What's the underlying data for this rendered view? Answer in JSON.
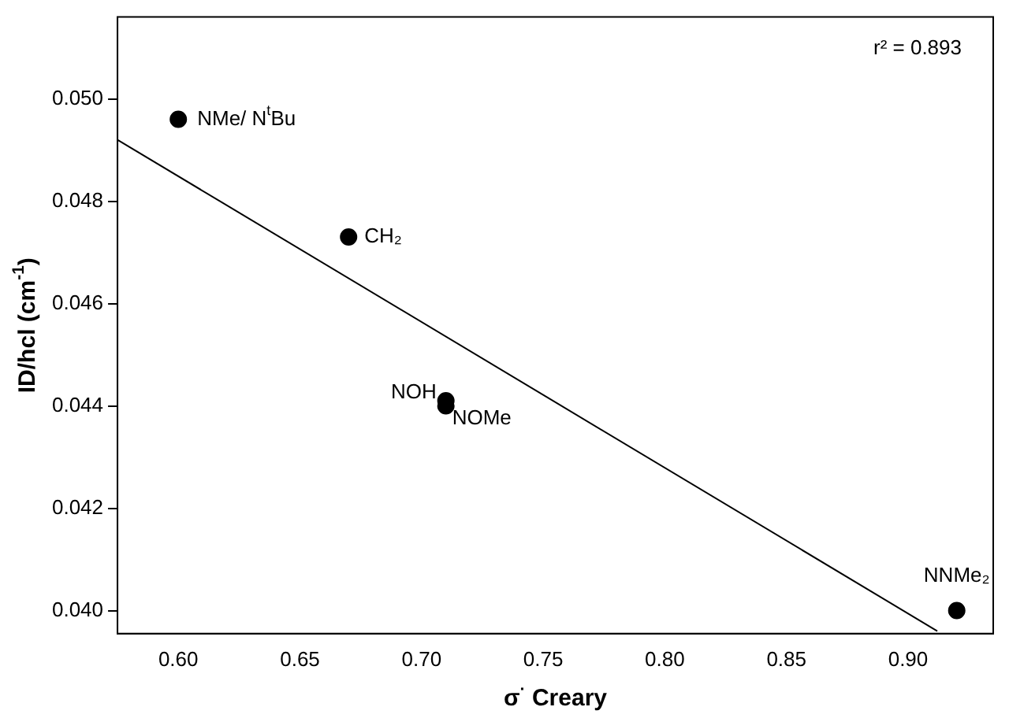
{
  "chart_data": {
    "type": "scatter",
    "xlabel": "σ$^{·}$ Creary",
    "ylabel": "ID/hcl (cm$^{-1}$)",
    "series": [
      {
        "color": "#000000",
        "marker": "circle",
        "x": [
          0.6,
          0.67,
          0.71,
          0.71,
          0.92
        ],
        "values": [
          0.0496,
          0.0473,
          0.0441,
          0.044,
          0.04
        ]
      },
      {
        "type": "line",
        "color": "#000000",
        "marker": "none",
        "x": [
          0.575,
          0.912
        ],
        "values": [
          0.0492,
          0.0396
        ]
      }
    ],
    "xlim": [
      0.575,
      0.935
    ],
    "ylim": [
      0.03955,
      0.0516
    ],
    "xticks": [
      {
        "value": 0.6,
        "label": "0.60"
      },
      {
        "value": 0.65,
        "label": "0.65"
      },
      {
        "value": 0.7,
        "label": "0.70"
      },
      {
        "value": 0.75,
        "label": "0.75"
      },
      {
        "value": 0.8,
        "label": "0.80"
      },
      {
        "value": 0.85,
        "label": "0.85"
      },
      {
        "value": 0.9,
        "label": "0.90"
      }
    ],
    "yticks": [
      {
        "value": 0.04,
        "label": "0.040"
      },
      {
        "value": 0.042,
        "label": "0.042"
      },
      {
        "value": 0.044,
        "label": "0.044"
      },
      {
        "value": 0.046,
        "label": "0.046"
      },
      {
        "value": 0.048,
        "label": "0.048"
      },
      {
        "value": 0.05,
        "label": "0.050"
      }
    ],
    "annotations": [
      {
        "text": "NMe/ N$^{t}$Bu",
        "x": 0.6,
        "y": 0.0496
      },
      {
        "text": "CH₂",
        "x": 0.67,
        "y": 0.0473
      },
      {
        "text": "NOH",
        "x": 0.71,
        "y": 0.0441
      },
      {
        "text": "NOMe",
        "x": 0.71,
        "y": 0.044
      },
      {
        "text": "NNMe₂",
        "x": 0.92,
        "y": 0.04
      },
      "r² = 0.893"
    ],
    "grid": false,
    "legend": false
  }
}
